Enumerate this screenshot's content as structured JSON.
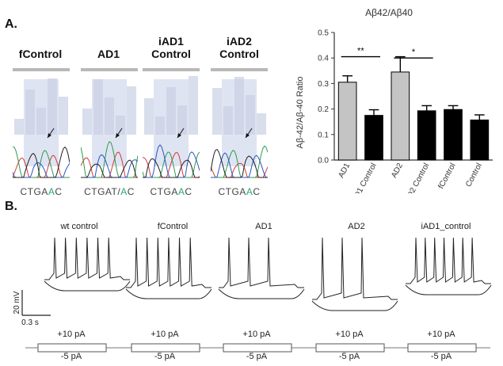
{
  "panel_a_label": "A.",
  "panel_b_label": "B.",
  "sequences": [
    {
      "title_lines": [
        "fControl"
      ],
      "code_pre": "CTGA",
      "code_hl": "A",
      "code_post": "C"
    },
    {
      "title_lines": [
        "AD1"
      ],
      "code_pre": "CTGAT/",
      "code_hl": "A",
      "code_post": "C"
    },
    {
      "title_lines": [
        "iAD1",
        "Control"
      ],
      "code_pre": "CTGA",
      "code_hl": "A",
      "code_post": "C"
    },
    {
      "title_lines": [
        "iAD2",
        "Control"
      ],
      "code_pre": "CTGA",
      "code_hl": "A",
      "code_post": "C"
    }
  ],
  "chart_data": {
    "type": "bar",
    "title": "Aβ42/Aβ40",
    "ylabel": "Aβ-42/Aβ-40 Ratio",
    "xlabel": "",
    "ylim": [
      0,
      0.5
    ],
    "yticks": [
      "0.0",
      "0.1",
      "0.2",
      "0.3",
      "0.4",
      "0.5"
    ],
    "categories": [
      "AD1",
      "iAD1 Control",
      "AD2",
      "iAD2 Control",
      "fControl",
      "Control"
    ],
    "values": [
      0.305,
      0.175,
      0.345,
      0.193,
      0.198,
      0.157
    ],
    "errors": [
      0.025,
      0.022,
      0.06,
      0.02,
      0.015,
      0.02
    ],
    "bar_colors": [
      "#c4c4c4",
      "#000000",
      "#c4c4c4",
      "#000000",
      "#000000",
      "#000000"
    ],
    "significance": [
      {
        "from": 0,
        "to": 1,
        "label": "**"
      },
      {
        "from": 2,
        "to": 3,
        "label": "*"
      }
    ],
    "grid": false
  },
  "traces": [
    {
      "title": "wt control",
      "stim_pos": "+10 pA",
      "stim_neg": "-5 pA"
    },
    {
      "title": "fControl",
      "stim_pos": "+10 pA",
      "stim_neg": "-5 pA"
    },
    {
      "title": "AD1",
      "stim_pos": "+10 pA",
      "stim_neg": "-5 pA"
    },
    {
      "title": "AD2",
      "stim_pos": "+10 pA",
      "stim_neg": "-5 pA"
    },
    {
      "title": "iAD1_control",
      "stim_pos": "+10 pA",
      "stim_neg": "-5 pA"
    }
  ],
  "scale_bar": {
    "voltage": "20 mV",
    "time": "0.3 s"
  }
}
